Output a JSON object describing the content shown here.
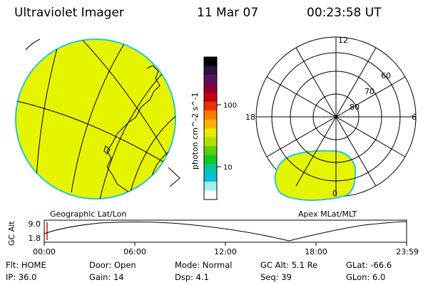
{
  "header": {
    "title": "Ultraviolet Imager",
    "date": "11 Mar 07",
    "time": "00:23:58 UT"
  },
  "colors": {
    "aurora_fill": "#e6f400",
    "aurora_edge": "#22c9d6",
    "grid": "#000000"
  },
  "geo_panel": {
    "label": "Geographic Lat/Lon"
  },
  "apex_panel": {
    "label": "Apex MLat/MLT",
    "mlt_labels": [
      "12",
      "18",
      "6",
      "0"
    ],
    "lat_labels": [
      "60",
      "70",
      "80"
    ]
  },
  "colorbar": {
    "label": "photon cm^-2 s^-1",
    "ticks": [
      "100",
      "10"
    ],
    "colors": [
      "#000000",
      "#301040",
      "#5a1060",
      "#8a0030",
      "#c80010",
      "#f03000",
      "#ff7a00",
      "#ffb000",
      "#e8e800",
      "#b0e000",
      "#60d000",
      "#10c820",
      "#00c8a0",
      "#00c0e0",
      "#a0f0f0",
      "#ffffff"
    ]
  },
  "altitude_plot": {
    "ylabel": "GC Alt",
    "yticks": [
      "9.0",
      "1.8"
    ],
    "xticks": [
      "00:00",
      "06:00",
      "12:00",
      "18:00",
      "23:59"
    ]
  },
  "info": {
    "flt": "Flt: HOME",
    "door": "Door: Open",
    "mode": "Mode: Normal",
    "gc_alt": "GC Alt: 5.1 Re",
    "glat": "GLat:  -66.6",
    "ip": "IP: 36.0",
    "gain": "Gain: 14",
    "dsp": "Dsp:     4.1",
    "seq": "Seq: 39",
    "glon": "GLon:    6.0"
  }
}
